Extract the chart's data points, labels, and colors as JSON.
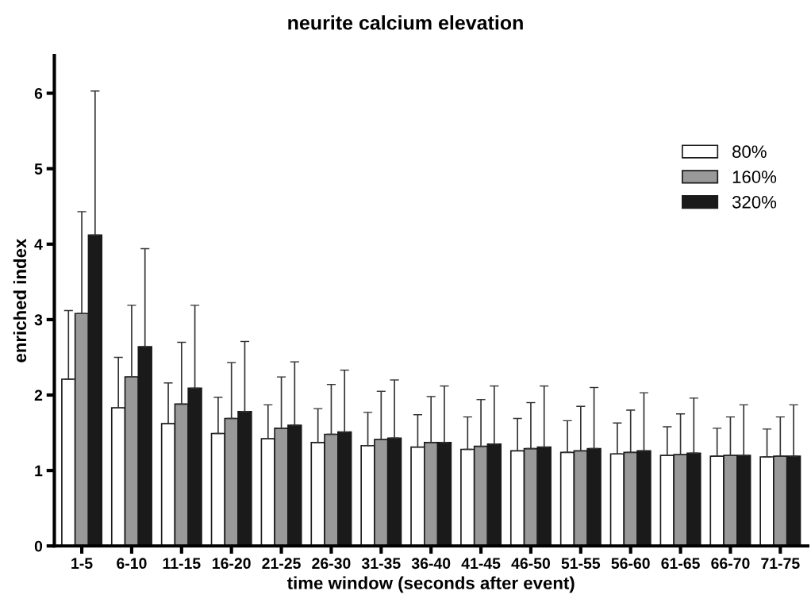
{
  "chart_data": {
    "type": "bar",
    "title": "neurite calcium elevation",
    "xlabel": "time window (seconds after event)",
    "ylabel": "enriched index",
    "categories": [
      "1-5",
      "6-10",
      "11-15",
      "16-20",
      "21-25",
      "26-30",
      "31-35",
      "36-40",
      "41-45",
      "46-50",
      "51-55",
      "56-60",
      "61-65",
      "66-70",
      "71-75"
    ],
    "series": [
      {
        "name": "80%",
        "color": "#ffffff",
        "values": [
          2.21,
          1.83,
          1.62,
          1.49,
          1.42,
          1.37,
          1.33,
          1.31,
          1.28,
          1.26,
          1.24,
          1.22,
          1.2,
          1.19,
          1.18
        ],
        "errors": [
          [
            2.21,
            3.12
          ],
          [
            1.83,
            2.5
          ],
          [
            1.62,
            2.16
          ],
          [
            1.49,
            1.97
          ],
          [
            1.42,
            1.87
          ],
          [
            1.37,
            1.82
          ],
          [
            1.33,
            1.77
          ],
          [
            1.31,
            1.74
          ],
          [
            1.28,
            1.71
          ],
          [
            1.26,
            1.69
          ],
          [
            1.24,
            1.66
          ],
          [
            1.22,
            1.63
          ],
          [
            1.2,
            1.58
          ],
          [
            1.19,
            1.56
          ],
          [
            1.18,
            1.55
          ]
        ]
      },
      {
        "name": "160%",
        "color": "#999999",
        "values": [
          3.08,
          2.24,
          1.88,
          1.69,
          1.56,
          1.48,
          1.41,
          1.37,
          1.32,
          1.29,
          1.26,
          1.24,
          1.21,
          1.2,
          1.19
        ],
        "errors": [
          [
            3.08,
            4.43
          ],
          [
            2.24,
            3.19
          ],
          [
            1.88,
            2.7
          ],
          [
            1.69,
            2.43
          ],
          [
            1.56,
            2.24
          ],
          [
            1.48,
            2.14
          ],
          [
            1.41,
            2.05
          ],
          [
            1.37,
            1.98
          ],
          [
            1.32,
            1.94
          ],
          [
            1.29,
            1.9
          ],
          [
            1.26,
            1.85
          ],
          [
            1.24,
            1.8
          ],
          [
            1.21,
            1.75
          ],
          [
            1.2,
            1.71
          ],
          [
            1.19,
            1.71
          ]
        ]
      },
      {
        "name": "320%",
        "color": "#1a1a1a",
        "values": [
          4.12,
          2.64,
          2.09,
          1.78,
          1.6,
          1.51,
          1.43,
          1.37,
          1.35,
          1.31,
          1.29,
          1.26,
          1.23,
          1.2,
          1.19
        ],
        "errors": [
          [
            4.12,
            6.03
          ],
          [
            2.64,
            3.94
          ],
          [
            2.09,
            3.19
          ],
          [
            1.78,
            2.71
          ],
          [
            1.6,
            2.44
          ],
          [
            1.51,
            2.33
          ],
          [
            1.43,
            2.2
          ],
          [
            1.37,
            2.12
          ],
          [
            1.35,
            2.12
          ],
          [
            1.31,
            2.12
          ],
          [
            1.29,
            2.1
          ],
          [
            1.26,
            2.03
          ],
          [
            1.23,
            1.96
          ],
          [
            1.2,
            1.87
          ],
          [
            1.19,
            1.87
          ]
        ]
      }
    ],
    "ylim": [
      0,
      6.5
    ],
    "yticks": [
      0,
      1,
      2,
      3,
      4,
      5,
      6
    ],
    "grid": false,
    "legend": "top right"
  }
}
